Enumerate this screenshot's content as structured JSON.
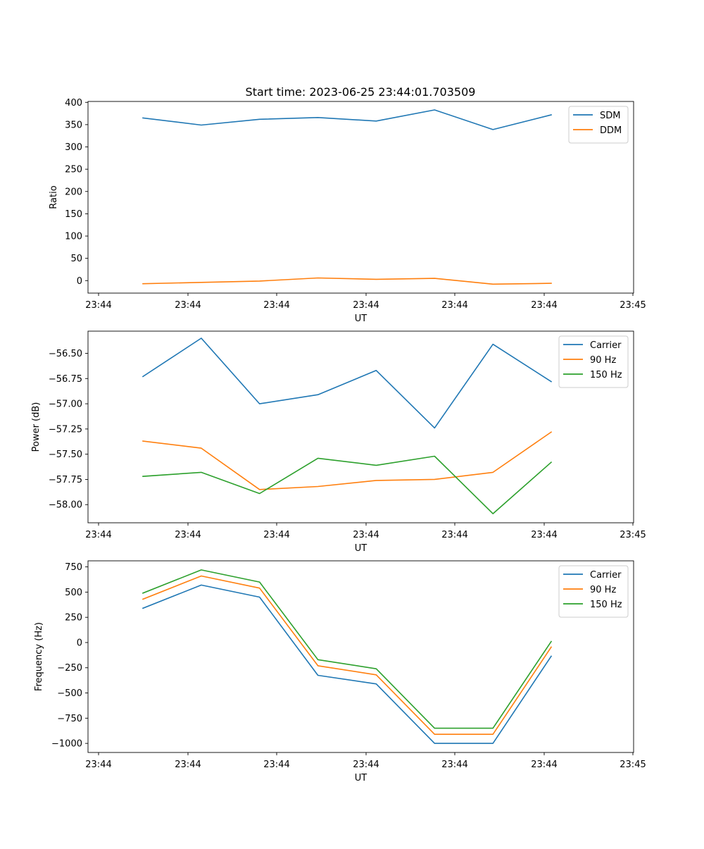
{
  "figure": {
    "title": "Start time: 2023-06-25 23:44:01.703509"
  },
  "chart_data": [
    {
      "type": "line",
      "ylabel": "Ratio",
      "xlabel": "UT",
      "ylim": [
        -28,
        402
      ],
      "yticks": [
        0,
        50,
        100,
        150,
        200,
        250,
        300,
        350,
        400
      ],
      "xtick_labels": [
        "23:44",
        "23:44",
        "23:44",
        "23:44",
        "23:44",
        "23:44",
        "23:44"
      ],
      "xtick_last_label": "23:45",
      "x": [
        0,
        1,
        2,
        3,
        4,
        5,
        6,
        7
      ],
      "series": [
        {
          "name": "SDM",
          "color": "#1f77b4",
          "values": [
            365,
            349,
            362,
            366,
            358,
            383,
            339,
            372
          ]
        },
        {
          "name": "DDM",
          "color": "#ff7f0e",
          "values": [
            -7,
            -4,
            -1,
            6,
            3,
            5,
            -8,
            -6
          ]
        }
      ],
      "legend": "top-right",
      "grid": false
    },
    {
      "type": "line",
      "ylabel": "Power (dB)",
      "xlabel": "UT",
      "ylim": [
        -58.18,
        -56.28
      ],
      "yticks": [
        -58.0,
        -57.75,
        -57.5,
        -57.25,
        -57.0,
        -56.75,
        -56.5
      ],
      "ytick_labels": [
        "−58.00",
        "−57.75",
        "−57.50",
        "−57.25",
        "−57.00",
        "−56.75",
        "−56.50"
      ],
      "xtick_labels": [
        "23:44",
        "23:44",
        "23:44",
        "23:44",
        "23:44",
        "23:44",
        "23:44"
      ],
      "xtick_last_label": "23:45",
      "x": [
        0,
        1,
        2,
        3,
        4,
        5,
        6,
        7
      ],
      "series": [
        {
          "name": "Carrier",
          "color": "#1f77b4",
          "values": [
            -56.73,
            -56.35,
            -57.0,
            -56.91,
            -56.67,
            -57.24,
            -56.41,
            -56.78
          ]
        },
        {
          "name": "90 Hz",
          "color": "#ff7f0e",
          "values": [
            -57.37,
            -57.44,
            -57.85,
            -57.82,
            -57.76,
            -57.75,
            -57.68,
            -57.28
          ]
        },
        {
          "name": "150 Hz",
          "color": "#2ca02c",
          "values": [
            -57.72,
            -57.68,
            -57.89,
            -57.54,
            -57.61,
            -57.52,
            -58.09,
            -57.58
          ]
        }
      ],
      "legend": "top-right",
      "grid": false
    },
    {
      "type": "line",
      "ylabel": "Frequency (Hz)",
      "xlabel": "UT",
      "ylim": [
        -1090,
        810
      ],
      "yticks": [
        -1000,
        -750,
        -500,
        -250,
        0,
        250,
        500,
        750
      ],
      "ytick_labels": [
        "−1000",
        "−750",
        "−500",
        "−250",
        "0",
        "250",
        "500",
        "750"
      ],
      "xtick_labels": [
        "23:44",
        "23:44",
        "23:44",
        "23:44",
        "23:44",
        "23:44",
        "23:44"
      ],
      "xtick_last_label": "23:45",
      "x": [
        0,
        1,
        2,
        3,
        4,
        5,
        6,
        7
      ],
      "series": [
        {
          "name": "Carrier",
          "color": "#1f77b4",
          "values": [
            340,
            570,
            450,
            -325,
            -410,
            -1000,
            -1000,
            -135
          ]
        },
        {
          "name": "90 Hz",
          "color": "#ff7f0e",
          "values": [
            430,
            660,
            540,
            -230,
            -320,
            -910,
            -910,
            -45
          ]
        },
        {
          "name": "150 Hz",
          "color": "#2ca02c",
          "values": [
            490,
            720,
            600,
            -170,
            -260,
            -850,
            -850,
            10
          ]
        }
      ],
      "legend": "top-right",
      "grid": false
    }
  ]
}
